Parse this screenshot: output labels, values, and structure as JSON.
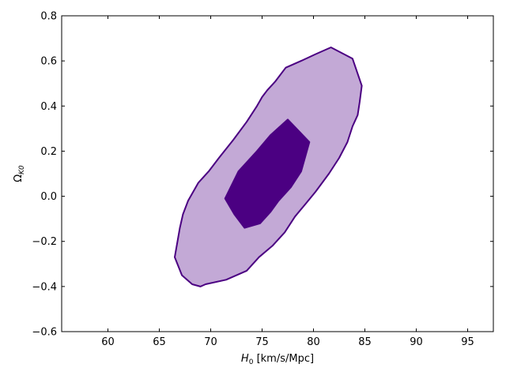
{
  "chart_data": {
    "type": "contour",
    "title": "",
    "xlabel": {
      "main": "H",
      "sub": "0",
      "rest": " [km/s/Mpc]"
    },
    "ylabel": {
      "main": "Ω",
      "sub": "K0"
    },
    "xlim": [
      55.5,
      97.5
    ],
    "ylim": [
      -0.6,
      0.8
    ],
    "xticks": [
      60,
      65,
      70,
      75,
      80,
      85,
      90,
      95
    ],
    "yticks": [
      -0.6,
      -0.4,
      -0.2,
      0.0,
      0.2,
      0.4,
      0.6,
      0.8
    ],
    "ytick_labels": [
      "−0.6",
      "−0.4",
      "−0.2",
      "0.0",
      "0.2",
      "0.4",
      "0.6",
      "0.8"
    ],
    "grid": false,
    "series": [
      {
        "level": "outer",
        "fill": "#c3a9d6",
        "stroke": "#4b0082",
        "points": [
          [
            81.7,
            0.66
          ],
          [
            83.8,
            0.61
          ],
          [
            84.7,
            0.49
          ],
          [
            84.5,
            0.42
          ],
          [
            84.3,
            0.36
          ],
          [
            83.8,
            0.31
          ],
          [
            83.3,
            0.24
          ],
          [
            82.5,
            0.17
          ],
          [
            81.5,
            0.1
          ],
          [
            80.2,
            0.02
          ],
          [
            79.3,
            -0.03
          ],
          [
            78.2,
            -0.09
          ],
          [
            77.2,
            -0.16
          ],
          [
            76.0,
            -0.22
          ],
          [
            74.7,
            -0.27
          ],
          [
            73.5,
            -0.33
          ],
          [
            71.5,
            -0.37
          ],
          [
            69.5,
            -0.39
          ],
          [
            69.0,
            -0.4
          ],
          [
            68.2,
            -0.39
          ],
          [
            67.2,
            -0.35
          ],
          [
            66.5,
            -0.27
          ],
          [
            67.0,
            -0.14
          ],
          [
            67.3,
            -0.08
          ],
          [
            67.8,
            -0.02
          ],
          [
            68.8,
            0.06
          ],
          [
            69.8,
            0.11
          ],
          [
            70.8,
            0.17
          ],
          [
            72.2,
            0.25
          ],
          [
            73.5,
            0.33
          ],
          [
            74.5,
            0.4
          ],
          [
            75.0,
            0.44
          ],
          [
            75.5,
            0.47
          ],
          [
            76.3,
            0.51
          ],
          [
            77.3,
            0.57
          ],
          [
            78.8,
            0.6
          ],
          [
            80.2,
            0.63
          ],
          [
            81.7,
            0.66
          ]
        ]
      },
      {
        "level": "inner",
        "fill": "#4b0082",
        "stroke": "#4b0082",
        "points": [
          [
            77.5,
            0.34
          ],
          [
            79.6,
            0.24
          ],
          [
            78.8,
            0.11
          ],
          [
            77.8,
            0.04
          ],
          [
            76.6,
            -0.02
          ],
          [
            75.8,
            -0.07
          ],
          [
            74.8,
            -0.12
          ],
          [
            73.3,
            -0.14
          ],
          [
            72.3,
            -0.08
          ],
          [
            71.4,
            -0.01
          ],
          [
            72.7,
            0.11
          ],
          [
            74.5,
            0.2
          ],
          [
            75.8,
            0.27
          ],
          [
            77.5,
            0.34
          ]
        ]
      }
    ]
  }
}
